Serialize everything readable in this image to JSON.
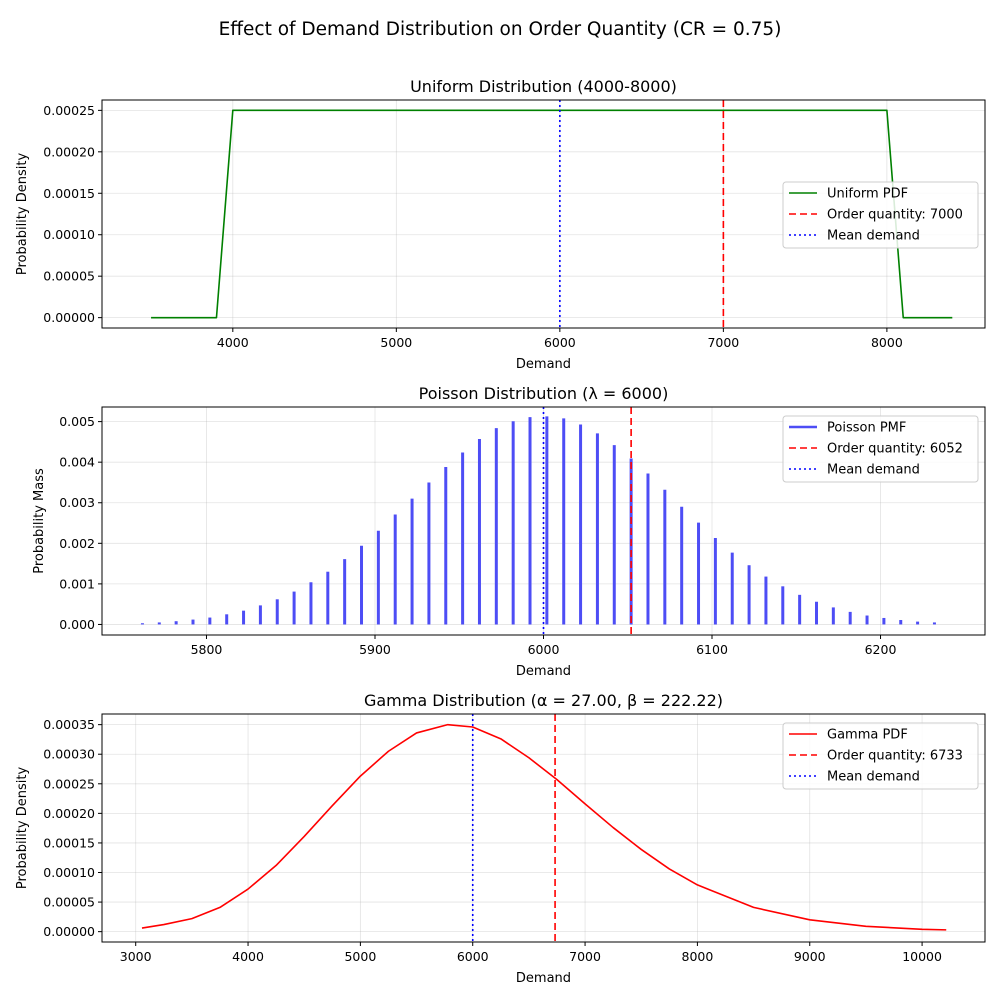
{
  "figure": {
    "suptitle": "Effect of Demand Distribution on Order Quantity (CR = 0.75)"
  },
  "colors": {
    "uniform": "#008000",
    "poisson": "#4d4df5",
    "gamma": "#ff0000",
    "order_line": "#ff0000",
    "mean_line": "#0000ff"
  },
  "chart_data": [
    {
      "type": "line",
      "title": "Uniform Distribution (4000-8000)",
      "xlabel": "Demand",
      "ylabel": "Probability Density",
      "xlim": [
        3200,
        8600
      ],
      "ylim": [
        -1.25e-05,
        0.0002625
      ],
      "xticks": [
        4000,
        5000,
        6000,
        7000,
        8000
      ],
      "xtick_labels": [
        "4000",
        "5000",
        "6000",
        "7000",
        "8000"
      ],
      "yticks": [
        0,
        5e-05,
        0.0001,
        0.00015,
        0.0002,
        0.00025
      ],
      "ytick_labels": [
        "0.00000",
        "0.00005",
        "0.00010",
        "0.00015",
        "0.00020",
        "0.00025"
      ],
      "series": [
        {
          "name": "Uniform PDF",
          "style": "line",
          "color": "#008000",
          "x": [
            3500,
            3900,
            4000,
            8000,
            8100,
            8400
          ],
          "y": [
            0,
            0,
            0.00025,
            0.00025,
            0,
            0
          ]
        }
      ],
      "vlines": [
        {
          "name": "Order quantity: 7000",
          "x": 7000,
          "color": "#ff0000",
          "dash": "dashed"
        },
        {
          "name": "Mean demand",
          "x": 6000,
          "color": "#0000ff",
          "dash": "dotted"
        }
      ],
      "legend": "center-right",
      "grid": true
    },
    {
      "type": "bar",
      "title": "Poisson Distribution (λ = 6000)",
      "xlabel": "Demand",
      "ylabel": "Probability Mass",
      "xlim": [
        5738,
        6262
      ],
      "ylim": [
        -0.00026,
        0.00536
      ],
      "xticks": [
        5800,
        5900,
        6000,
        6100,
        6200
      ],
      "xtick_labels": [
        "5800",
        "5900",
        "6000",
        "6100",
        "6200"
      ],
      "yticks": [
        0,
        0.001,
        0.002,
        0.003,
        0.004,
        0.005
      ],
      "ytick_labels": [
        "0.000",
        "0.001",
        "0.002",
        "0.003",
        "0.004",
        "0.005"
      ],
      "series": [
        {
          "name": "Poisson PMF",
          "style": "stem",
          "color": "#4d4df5",
          "x": [
            5762,
            5772,
            5782,
            5792,
            5802,
            5812,
            5822,
            5832,
            5842,
            5852,
            5862,
            5872,
            5882,
            5892,
            5902,
            5912,
            5922,
            5932,
            5942,
            5952,
            5962,
            5972,
            5982,
            5992,
            6002,
            6012,
            6022,
            6032,
            6042,
            6052,
            6062,
            6072,
            6082,
            6092,
            6102,
            6112,
            6122,
            6132,
            6142,
            6152,
            6162,
            6172,
            6182,
            6192,
            6202,
            6212,
            6222,
            6232
          ],
          "y": [
            3e-05,
            5e-05,
            8e-05,
            0.00012,
            0.00017,
            0.00025,
            0.00034,
            0.00047,
            0.00062,
            0.00081,
            0.00104,
            0.0013,
            0.00161,
            0.00194,
            0.00231,
            0.00271,
            0.0031,
            0.0035,
            0.00388,
            0.00424,
            0.00457,
            0.00484,
            0.00501,
            0.00511,
            0.00513,
            0.00508,
            0.00493,
            0.00471,
            0.00442,
            0.00409,
            0.00372,
            0.00332,
            0.0029,
            0.00251,
            0.00213,
            0.00177,
            0.00146,
            0.00118,
            0.00094,
            0.00073,
            0.00056,
            0.00042,
            0.00031,
            0.00022,
            0.00016,
            0.00011,
            7e-05,
            5e-05
          ]
        }
      ],
      "vlines": [
        {
          "name": "Order quantity: 6052",
          "x": 6052,
          "color": "#ff0000",
          "dash": "dashed"
        },
        {
          "name": "Mean demand",
          "x": 6000,
          "color": "#0000ff",
          "dash": "dotted"
        }
      ],
      "legend": "top-right",
      "grid": true
    },
    {
      "type": "line",
      "title": "Gamma Distribution (α = 27.00, β = 222.22)",
      "xlabel": "Demand",
      "ylabel": "Probability Density",
      "xlim": [
        2700,
        10560
      ],
      "ylim": [
        -1.75e-05,
        0.000368
      ],
      "xticks": [
        3000,
        4000,
        5000,
        6000,
        7000,
        8000,
        9000,
        10000
      ],
      "xtick_labels": [
        "3000",
        "4000",
        "5000",
        "6000",
        "7000",
        "8000",
        "9000",
        "10000"
      ],
      "yticks": [
        0,
        5e-05,
        0.0001,
        0.00015,
        0.0002,
        0.00025,
        0.0003,
        0.00035
      ],
      "ytick_labels": [
        "0.00000",
        "0.00005",
        "0.00010",
        "0.00015",
        "0.00020",
        "0.00025",
        "0.00030",
        "0.00035"
      ],
      "series": [
        {
          "name": "Gamma PDF",
          "style": "line",
          "color": "#ff0000",
          "x": [
            3056,
            3250,
            3500,
            3750,
            4000,
            4250,
            4500,
            4750,
            5000,
            5250,
            5500,
            5778,
            6000,
            6250,
            6500,
            6750,
            7000,
            7250,
            7500,
            7750,
            8000,
            8500,
            9000,
            9500,
            10000,
            10215
          ],
          "y": [
            6e-06,
            1.2e-05,
            2.2e-05,
            4.1e-05,
            7.2e-05,
            0.000112,
            0.000161,
            0.000213,
            0.000263,
            0.000305,
            0.000336,
            0.00035,
            0.000346,
            0.000326,
            0.000294,
            0.000257,
            0.000216,
            0.000176,
            0.000139,
            0.000106,
            7.9e-05,
            4.1e-05,
            2e-05,
            9e-06,
            4e-06,
            3e-06
          ]
        }
      ],
      "vlines": [
        {
          "name": "Order quantity: 6733",
          "x": 6733,
          "color": "#ff0000",
          "dash": "dashed"
        },
        {
          "name": "Mean demand",
          "x": 6000,
          "color": "#0000ff",
          "dash": "dotted"
        }
      ],
      "legend": "top-right",
      "grid": true
    }
  ]
}
